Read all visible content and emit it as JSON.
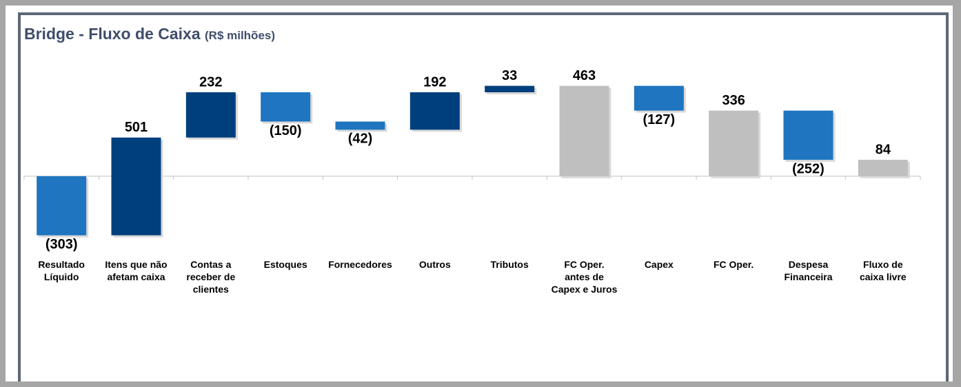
{
  "chart_data": {
    "type": "waterfall",
    "title": "Bridge - Fluxo de Caixa",
    "subtitle": "(R$ milhões)",
    "categories": [
      "Resultado Líquido",
      "Itens que não afetam caixa",
      "Contas a receber de clientes",
      "Estoques",
      "Fornecedores",
      "Outros",
      "Tributos",
      "FC Oper. antes de Capex e Juros",
      "Capex",
      "FC Oper.",
      "Despesa Financeira",
      "Fluxo de caixa livre"
    ],
    "values": [
      -303,
      501,
      232,
      -150,
      -42,
      192,
      33,
      463,
      -127,
      336,
      -252,
      84
    ],
    "value_labels": [
      "(303)",
      "501",
      "232",
      "(150)",
      "(42)",
      "192",
      "33",
      "463",
      "(127)",
      "336",
      "(252)",
      "84"
    ],
    "is_total": [
      false,
      false,
      false,
      false,
      false,
      false,
      false,
      true,
      false,
      true,
      false,
      true
    ],
    "colors": {
      "increase": "#003f7d",
      "decrease": "#1f75c0",
      "total": "#bfbfbf"
    },
    "ylim": [
      -350,
      550
    ]
  }
}
